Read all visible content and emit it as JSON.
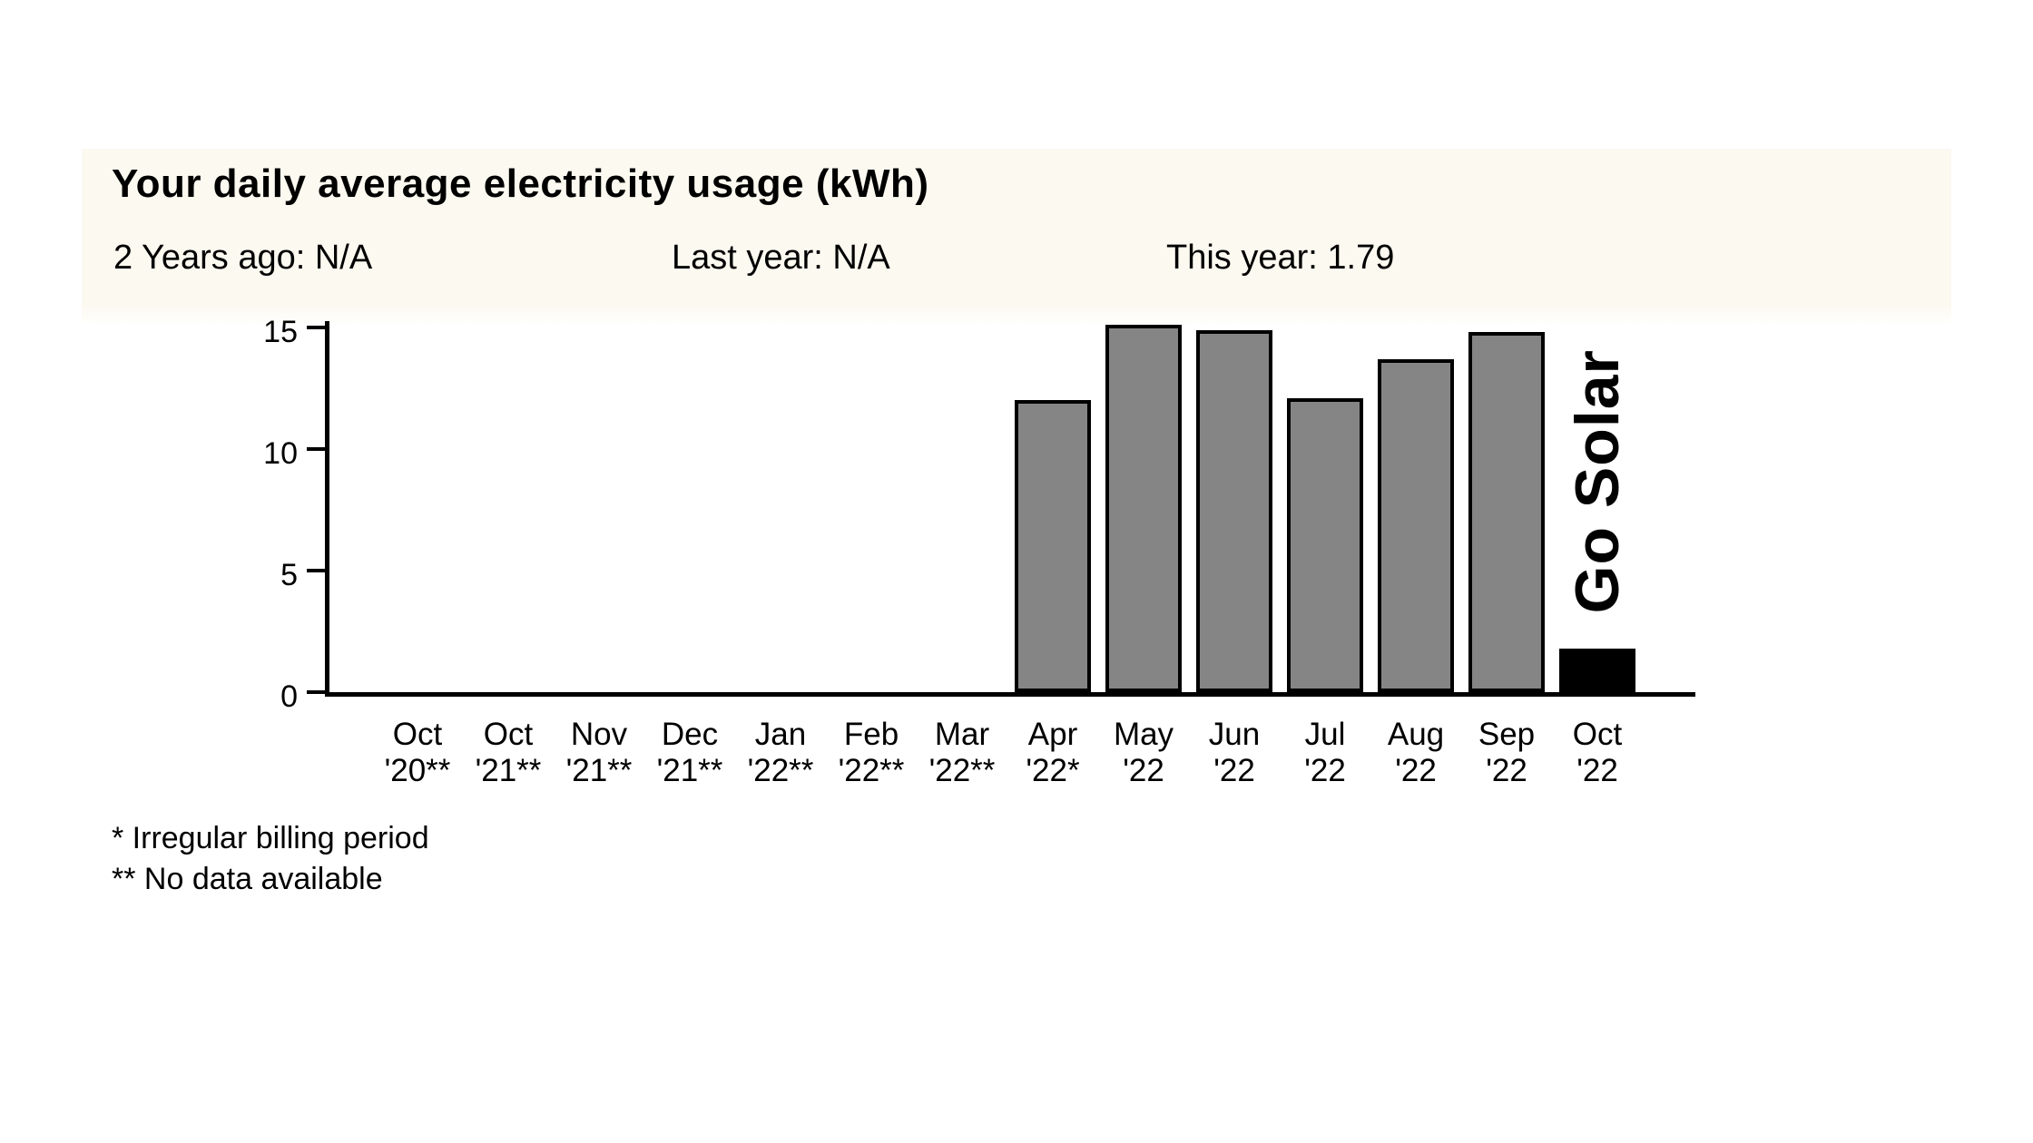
{
  "page": {
    "background": "#ffffff"
  },
  "card": {
    "header_band_color": "#fbf9f0",
    "title": "Your daily average electricity usage (kWh)",
    "stats": [
      {
        "label": "2 Years ago",
        "value": "N/A",
        "text": "2 Years ago: N/A"
      },
      {
        "label": "Last year",
        "value": "N/A",
        "text": "Last year: N/A"
      },
      {
        "label": "This year",
        "value": "1.79",
        "text": "This year: 1.79"
      }
    ],
    "overlay_label": "Go Solar",
    "footnotes": [
      "* Irregular billing period",
      "** No data available"
    ]
  },
  "chart_data": {
    "type": "bar",
    "title": "Your daily average electricity usage (kWh)",
    "xlabel": "",
    "ylabel": "",
    "ylim": [
      0,
      15
    ],
    "yticks": [
      0,
      5,
      10,
      15
    ],
    "grid": false,
    "legend": false,
    "categories": [
      "Oct '20**",
      "Oct '21**",
      "Nov '21**",
      "Dec '21**",
      "Jan '22**",
      "Feb '22**",
      "Mar '22**",
      "Apr '22*",
      "May '22",
      "Jun '22",
      "Jul '22",
      "Aug '22",
      "Sep '22",
      "Oct '22"
    ],
    "tick_lines": [
      {
        "month": "Oct",
        "year": "'20**"
      },
      {
        "month": "Oct",
        "year": "'21**"
      },
      {
        "month": "Nov",
        "year": "'21**"
      },
      {
        "month": "Dec",
        "year": "'21**"
      },
      {
        "month": "Jan",
        "year": "'22**"
      },
      {
        "month": "Feb",
        "year": "'22**"
      },
      {
        "month": "Mar",
        "year": "'22**"
      },
      {
        "month": "Apr",
        "year": "'22*"
      },
      {
        "month": "May",
        "year": "'22"
      },
      {
        "month": "Jun",
        "year": "'22"
      },
      {
        "month": "Jul",
        "year": "'22"
      },
      {
        "month": "Aug",
        "year": "'22"
      },
      {
        "month": "Sep",
        "year": "'22"
      },
      {
        "month": "Oct",
        "year": "'22"
      }
    ],
    "values": [
      null,
      null,
      null,
      null,
      null,
      null,
      null,
      12.0,
      15.1,
      14.9,
      12.1,
      13.7,
      14.8,
      1.79
    ],
    "bar_fill": "#858585",
    "bar_border": "#000000",
    "highlight_index": 13,
    "highlight_fill": "#000000",
    "annotations": [
      "Go Solar"
    ],
    "footnotes": [
      "* Irregular billing period",
      "** No data available"
    ]
  }
}
